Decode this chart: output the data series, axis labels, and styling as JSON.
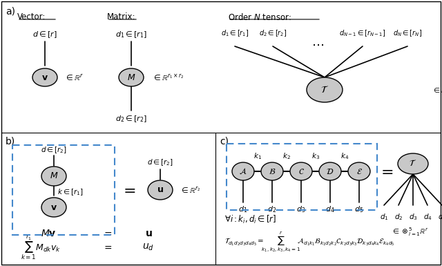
{
  "bg_color": "#ffffff",
  "node_color": "#c8c8c8",
  "node_edge_color": "#000000",
  "dashed_box_color": "#4488cc",
  "text_color": "#000000",
  "panel_a_label": "a)",
  "panel_b_label": "b)",
  "panel_c_label": "c)"
}
